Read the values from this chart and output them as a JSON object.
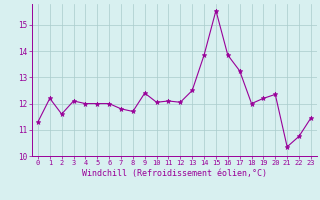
{
  "x": [
    0,
    1,
    2,
    3,
    4,
    5,
    6,
    7,
    8,
    9,
    10,
    11,
    12,
    13,
    14,
    15,
    16,
    17,
    18,
    19,
    20,
    21,
    22,
    23
  ],
  "y": [
    11.3,
    12.2,
    11.6,
    12.1,
    12.0,
    12.0,
    12.0,
    11.8,
    11.7,
    12.4,
    12.05,
    12.1,
    12.05,
    12.5,
    13.85,
    15.55,
    13.85,
    13.25,
    12.0,
    12.2,
    12.35,
    10.35,
    10.75,
    11.45
  ],
  "line_color": "#990099",
  "marker": "*",
  "marker_size": 3.5,
  "bg_color": "#d8f0f0",
  "grid_color": "#aacccc",
  "xlabel": "Windchill (Refroidissement éolien,°C)",
  "xlabel_color": "#990099",
  "tick_color": "#990099",
  "ylim": [
    10,
    15.8
  ],
  "xlim": [
    -0.5,
    23.5
  ],
  "yticks": [
    10,
    11,
    12,
    13,
    14,
    15
  ],
  "xticks": [
    0,
    1,
    2,
    3,
    4,
    5,
    6,
    7,
    8,
    9,
    10,
    11,
    12,
    13,
    14,
    15,
    16,
    17,
    18,
    19,
    20,
    21,
    22,
    23
  ]
}
